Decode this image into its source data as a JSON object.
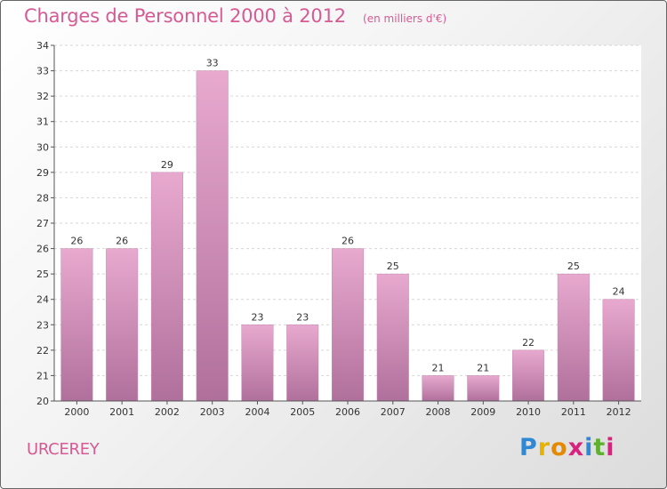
{
  "header": {
    "title": "Charges de Personnel 2000 à 2012",
    "subtitle": "(en milliers d'€)"
  },
  "commune": "URCEREY",
  "logo": {
    "letters": [
      "P",
      "r",
      "o",
      "x",
      "i",
      "t",
      "i"
    ],
    "colors": [
      "#2e88d4",
      "#e8b300",
      "#e58a00",
      "#d8237e",
      "#2e88d4",
      "#5eb030",
      "#d8237e"
    ]
  },
  "colors": {
    "accent": "#d65a93",
    "bar_top": "#e8a9cf",
    "bar_bottom": "#b0709c"
  },
  "chart_data": {
    "type": "bar",
    "categories": [
      "2000",
      "2001",
      "2002",
      "2003",
      "2004",
      "2005",
      "2006",
      "2007",
      "2008",
      "2009",
      "2010",
      "2011",
      "2012"
    ],
    "values": [
      26,
      26,
      29,
      33,
      23,
      23,
      26,
      25,
      21,
      21,
      22,
      25,
      24
    ],
    "title": "Charges de Personnel 2000 à 2012",
    "ylim": [
      20,
      34
    ],
    "yticks": [
      20,
      21,
      22,
      23,
      24,
      25,
      26,
      27,
      28,
      29,
      30,
      31,
      32,
      33,
      34
    ],
    "grid": true,
    "legend": "none"
  }
}
